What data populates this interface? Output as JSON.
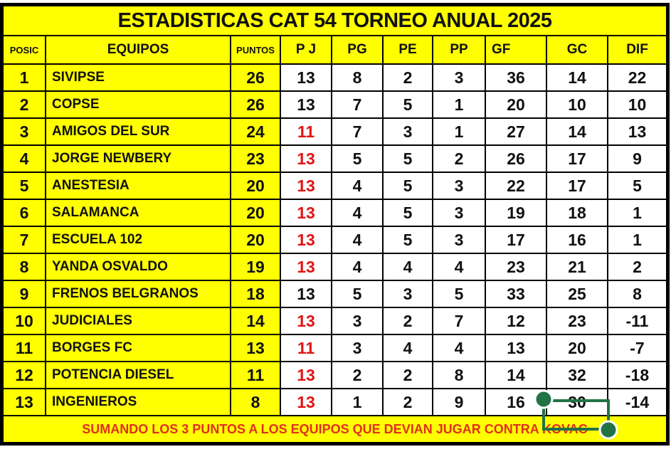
{
  "title": "ESTADISTICAS CAT 54 TORNEO ANUAL 2025",
  "headers": [
    "POSIC",
    "EQUIPOS",
    "PUNTOS",
    "P J",
    "PG",
    "PE",
    "PP",
    "GF",
    "GC",
    "DIF"
  ],
  "rows": [
    {
      "pos": "1",
      "team": "SIVIPSE",
      "pts": "26",
      "pj": "13",
      "pj_red": false,
      "pg": "8",
      "pe": "2",
      "pp": "3",
      "gf": "36",
      "gc": "14",
      "dif": "22"
    },
    {
      "pos": "2",
      "team": "COPSE",
      "pts": "26",
      "pj": "13",
      "pj_red": false,
      "pg": "7",
      "pe": "5",
      "pp": "1",
      "gf": "20",
      "gc": "10",
      "dif": "10"
    },
    {
      "pos": "3",
      "team": "AMIGOS DEL SUR",
      "pts": "24",
      "pj": "11",
      "pj_red": true,
      "pg": "7",
      "pe": "3",
      "pp": "1",
      "gf": "27",
      "gc": "14",
      "dif": "13"
    },
    {
      "pos": "4",
      "team": "JORGE NEWBERY",
      "pts": "23",
      "pj": "13",
      "pj_red": true,
      "pg": "5",
      "pe": "5",
      "pp": "2",
      "gf": "26",
      "gc": "17",
      "dif": "9"
    },
    {
      "pos": "5",
      "team": "ANESTESIA",
      "pts": "20",
      "pj": "13",
      "pj_red": true,
      "pg": "4",
      "pe": "5",
      "pp": "3",
      "gf": "22",
      "gc": "17",
      "dif": "5"
    },
    {
      "pos": "6",
      "team": "SALAMANCA",
      "pts": "20",
      "pj": "13",
      "pj_red": true,
      "pg": "4",
      "pe": "5",
      "pp": "3",
      "gf": "19",
      "gc": "18",
      "dif": "1"
    },
    {
      "pos": "7",
      "team": "ESCUELA 102",
      "pts": "20",
      "pj": "13",
      "pj_red": true,
      "pg": "4",
      "pe": "5",
      "pp": "3",
      "gf": "17",
      "gc": "16",
      "dif": "1"
    },
    {
      "pos": "8",
      "team": "YANDA OSVALDO",
      "pts": "19",
      "pj": "13",
      "pj_red": true,
      "pg": "4",
      "pe": "4",
      "pp": "4",
      "gf": "23",
      "gc": "21",
      "dif": "2"
    },
    {
      "pos": "9",
      "team": "FRENOS BELGRANOS",
      "pts": "18",
      "pj": "13",
      "pj_red": false,
      "pg": "5",
      "pe": "3",
      "pp": "5",
      "gf": "33",
      "gc": "25",
      "dif": "8"
    },
    {
      "pos": "10",
      "team": "JUDICIALES",
      "pts": "14",
      "pj": "13",
      "pj_red": true,
      "pg": "3",
      "pe": "2",
      "pp": "7",
      "gf": "12",
      "gc": "23",
      "dif": "-11"
    },
    {
      "pos": "11",
      "team": "BORGES FC",
      "pts": "13",
      "pj": "11",
      "pj_red": true,
      "pg": "3",
      "pe": "4",
      "pp": "4",
      "gf": "13",
      "gc": "20",
      "dif": "-7"
    },
    {
      "pos": "12",
      "team": "POTENCIA DIESEL",
      "pts": "11",
      "pj": "13",
      "pj_red": true,
      "pg": "2",
      "pe": "2",
      "pp": "8",
      "gf": "14",
      "gc": "32",
      "dif": "-18"
    },
    {
      "pos": "13",
      "team": "INGENIEROS",
      "pts": "8",
      "pj": "13",
      "pj_red": true,
      "pg": "1",
      "pe": "2",
      "pp": "9",
      "gf": "16",
      "gc": "30",
      "dif": "-14"
    }
  ],
  "footer": "SUMANDO LOS 3 PUNTOS A LOS EQUIPOS QUE DEVIAN JUGAR CONTRA KOVAC",
  "colors": {
    "yellow": "#ffff00",
    "red": "#e01515",
    "selection": "#217346"
  }
}
